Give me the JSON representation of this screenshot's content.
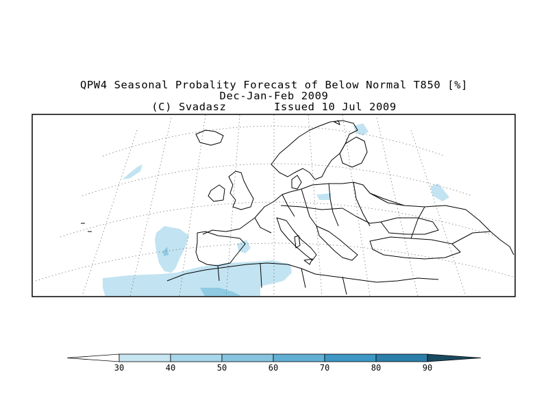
{
  "title": {
    "line1": "QPW4 Seasonal Probality Forecast of Below Normal T850 [%]",
    "line2": "Dec-Jan-Feb 2009",
    "line3": "(C) Svadasz       Issued 10 Jul 2009"
  },
  "colorbar": {
    "ticks": [
      "30",
      "40",
      "50",
      "60",
      "70",
      "80",
      "90"
    ],
    "colors": [
      "#ffffff",
      "#c8e6f2",
      "#a8d6ea",
      "#86c4e0",
      "#62afd4",
      "#3e97c4",
      "#2b7ea8",
      "#1f5f7e",
      "#1a4a60"
    ]
  },
  "map": {
    "fill_light": "#c2e3f1",
    "fill_medium": "#8ecbe3",
    "coast_color": "#000000",
    "grid_color": "#555555"
  }
}
